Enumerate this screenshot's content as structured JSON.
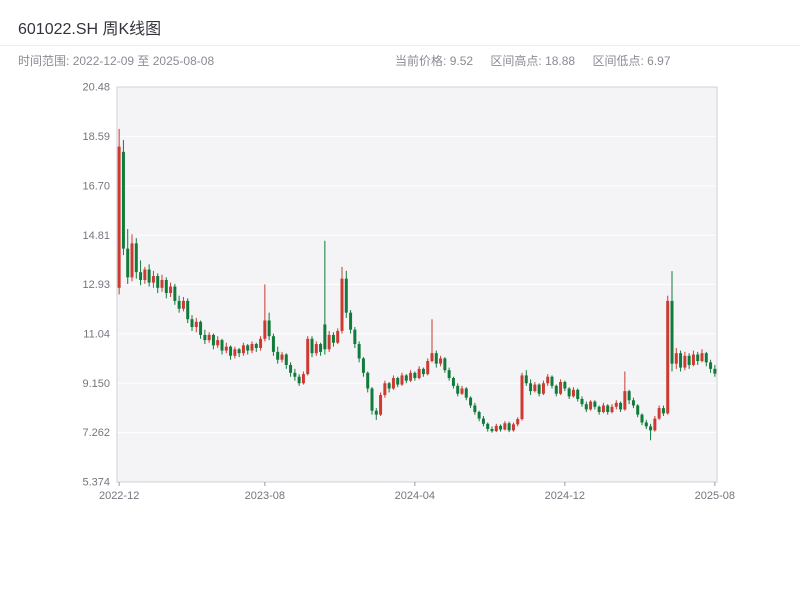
{
  "header": {
    "title": "601022.SH 周K线图"
  },
  "info": {
    "time_range_label": "时间范围:",
    "time_range_value": "2022-12-09 至 2025-08-08",
    "current_price_label": "当前价格:",
    "current_price_value": "9.52",
    "range_high_label": "区间高点:",
    "range_high_value": "18.88",
    "range_low_label": "区间低点:",
    "range_low_value": "6.97"
  },
  "chart_data": {
    "type": "candlestick",
    "title": "601022.SH 周K线图",
    "symbol": "601022.SH",
    "period": "weekly",
    "current_price": 9.52,
    "range_high": 18.88,
    "range_low": 6.97,
    "ylim": [
      5.374,
      20.48
    ],
    "y_ticks": [
      {
        "label": "20.48",
        "value": 20.48
      },
      {
        "label": "18.59",
        "value": 18.59
      },
      {
        "label": "16.70",
        "value": 16.7
      },
      {
        "label": "14.81",
        "value": 14.81
      },
      {
        "label": "12.93",
        "value": 12.93
      },
      {
        "label": "11.04",
        "value": 11.04
      },
      {
        "label": "9.150",
        "value": 9.15
      },
      {
        "label": "7.262",
        "value": 7.262
      },
      {
        "label": "5.374",
        "value": 5.374
      }
    ],
    "x_ticks": [
      {
        "label": "2022-12",
        "index": 0
      },
      {
        "label": "2023-08",
        "index": 34
      },
      {
        "label": "2024-04",
        "index": 69
      },
      {
        "label": "2024-12",
        "index": 104
      },
      {
        "label": "2025-08",
        "index": 139
      }
    ],
    "colors": {
      "up": "#cc3a32",
      "down": "#107b3b",
      "plot_bg": "#f4f4f7",
      "grid": "#ffffff",
      "frame": "#cfcfd8",
      "tick_text": "#75757f"
    },
    "columns": [
      "date",
      "open",
      "high",
      "low",
      "close"
    ],
    "ohlc": [
      [
        "2022-12-09",
        12.8,
        18.88,
        12.55,
        18.2
      ],
      [
        "2022-12-16",
        18.0,
        18.45,
        14.05,
        14.3
      ],
      [
        "2022-12-23",
        14.3,
        15.05,
        12.95,
        13.2
      ],
      [
        "2022-12-30",
        13.2,
        14.85,
        13.05,
        14.5
      ],
      [
        "2023-01-06",
        14.5,
        14.7,
        13.15,
        13.4
      ],
      [
        "2023-01-13",
        13.4,
        13.85,
        12.9,
        13.1
      ],
      [
        "2023-01-20",
        13.1,
        13.6,
        12.95,
        13.5
      ],
      [
        "2023-01-27",
        13.5,
        13.7,
        12.85,
        13.0
      ],
      [
        "2023-02-03",
        13.0,
        13.45,
        12.8,
        13.25
      ],
      [
        "2023-02-10",
        13.25,
        13.35,
        12.6,
        12.8
      ],
      [
        "2023-02-17",
        12.8,
        13.3,
        12.65,
        13.1
      ],
      [
        "2023-02-24",
        13.1,
        13.2,
        12.4,
        12.6
      ],
      [
        "2023-03-03",
        12.6,
        13.0,
        12.45,
        12.85
      ],
      [
        "2023-03-10",
        12.85,
        12.95,
        12.15,
        12.3
      ],
      [
        "2023-03-17",
        12.3,
        12.5,
        11.85,
        12.0
      ],
      [
        "2023-03-24",
        12.0,
        12.45,
        11.9,
        12.3
      ],
      [
        "2023-03-31",
        12.3,
        12.4,
        11.45,
        11.6
      ],
      [
        "2023-04-07",
        11.6,
        11.75,
        11.15,
        11.3
      ],
      [
        "2023-04-14",
        11.3,
        11.65,
        11.1,
        11.5
      ],
      [
        "2023-04-21",
        11.5,
        11.55,
        10.85,
        11.0
      ],
      [
        "2023-04-28",
        11.0,
        11.2,
        10.65,
        10.8
      ],
      [
        "2023-05-05",
        10.8,
        11.1,
        10.7,
        11.0
      ],
      [
        "2023-05-12",
        11.0,
        11.05,
        10.45,
        10.6
      ],
      [
        "2023-05-19",
        10.6,
        10.95,
        10.5,
        10.8
      ],
      [
        "2023-05-26",
        10.8,
        10.85,
        10.25,
        10.4
      ],
      [
        "2023-06-02",
        10.4,
        10.7,
        10.3,
        10.55
      ],
      [
        "2023-06-09",
        10.55,
        10.6,
        10.05,
        10.2
      ],
      [
        "2023-06-16",
        10.2,
        10.55,
        10.1,
        10.45
      ],
      [
        "2023-06-23",
        10.45,
        10.5,
        10.15,
        10.3
      ],
      [
        "2023-06-30",
        10.3,
        10.7,
        10.2,
        10.6
      ],
      [
        "2023-07-07",
        10.6,
        10.65,
        10.25,
        10.4
      ],
      [
        "2023-07-14",
        10.4,
        10.75,
        10.3,
        10.65
      ],
      [
        "2023-07-21",
        10.65,
        10.7,
        10.35,
        10.5
      ],
      [
        "2023-07-28",
        10.5,
        10.95,
        10.4,
        10.85
      ],
      [
        "2023-08-04",
        10.85,
        12.93,
        10.75,
        11.55
      ],
      [
        "2023-08-11",
        11.55,
        11.85,
        10.8,
        10.95
      ],
      [
        "2023-08-18",
        10.95,
        11.05,
        10.2,
        10.35
      ],
      [
        "2023-08-25",
        10.35,
        10.55,
        9.9,
        10.05
      ],
      [
        "2023-09-01",
        10.05,
        10.35,
        9.95,
        10.25
      ],
      [
        "2023-09-08",
        10.25,
        10.3,
        9.7,
        9.85
      ],
      [
        "2023-09-15",
        9.85,
        9.95,
        9.4,
        9.55
      ],
      [
        "2023-09-22",
        9.55,
        9.7,
        9.25,
        9.4
      ],
      [
        "2023-09-29",
        9.4,
        9.5,
        9.05,
        9.15
      ],
      [
        "2023-10-06",
        9.15,
        9.6,
        9.1,
        9.5
      ],
      [
        "2023-10-13",
        9.5,
        10.95,
        9.45,
        10.85
      ],
      [
        "2023-10-20",
        10.85,
        10.95,
        10.15,
        10.3
      ],
      [
        "2023-10-27",
        10.3,
        10.75,
        10.2,
        10.65
      ],
      [
        "2023-11-03",
        10.65,
        10.7,
        10.2,
        10.35
      ],
      [
        "2023-11-10",
        11.4,
        14.6,
        10.25,
        10.45
      ],
      [
        "2023-11-17",
        10.45,
        11.15,
        10.35,
        11.0
      ],
      [
        "2023-11-24",
        11.0,
        11.1,
        10.55,
        10.7
      ],
      [
        "2023-12-01",
        10.7,
        11.25,
        10.65,
        11.15
      ],
      [
        "2023-12-08",
        11.15,
        13.6,
        11.05,
        13.15
      ],
      [
        "2023-12-15",
        13.15,
        13.45,
        11.65,
        11.85
      ],
      [
        "2023-12-22",
        11.85,
        11.95,
        11.05,
        11.2
      ],
      [
        "2023-12-29",
        11.2,
        11.3,
        10.5,
        10.65
      ],
      [
        "2024-01-05",
        10.65,
        10.75,
        9.95,
        10.1
      ],
      [
        "2024-01-12",
        10.1,
        10.15,
        9.4,
        9.55
      ],
      [
        "2024-01-19",
        9.55,
        9.6,
        8.8,
        8.95
      ],
      [
        "2024-01-26",
        8.95,
        9.0,
        7.95,
        8.1
      ],
      [
        "2024-02-02",
        8.1,
        8.2,
        7.75,
        7.95
      ],
      [
        "2024-02-09",
        7.95,
        8.8,
        7.9,
        8.7
      ],
      [
        "2024-02-16",
        8.7,
        9.25,
        8.6,
        9.15
      ],
      [
        "2024-02-23",
        9.15,
        9.2,
        8.8,
        8.95
      ],
      [
        "2024-03-01",
        8.95,
        9.45,
        8.9,
        9.35
      ],
      [
        "2024-03-08",
        9.35,
        9.4,
        9.0,
        9.1
      ],
      [
        "2024-03-15",
        9.1,
        9.55,
        9.05,
        9.45
      ],
      [
        "2024-03-22",
        9.45,
        9.5,
        9.15,
        9.25
      ],
      [
        "2024-03-29",
        9.25,
        9.65,
        9.2,
        9.55
      ],
      [
        "2024-04-05",
        9.55,
        9.6,
        9.25,
        9.35
      ],
      [
        "2024-04-12",
        9.35,
        9.8,
        9.3,
        9.7
      ],
      [
        "2024-04-19",
        9.7,
        9.75,
        9.4,
        9.5
      ],
      [
        "2024-04-26",
        9.5,
        10.1,
        9.45,
        10.0
      ],
      [
        "2024-05-03",
        10.0,
        11.6,
        9.95,
        10.3
      ],
      [
        "2024-05-10",
        10.3,
        10.4,
        9.75,
        9.9
      ],
      [
        "2024-05-17",
        9.9,
        10.2,
        9.8,
        10.1
      ],
      [
        "2024-05-24",
        10.1,
        10.15,
        9.55,
        9.65
      ],
      [
        "2024-05-31",
        9.65,
        9.75,
        9.25,
        9.35
      ],
      [
        "2024-06-07",
        9.35,
        9.4,
        8.95,
        9.05
      ],
      [
        "2024-06-14",
        9.05,
        9.15,
        8.65,
        8.75
      ],
      [
        "2024-06-21",
        8.75,
        9.05,
        8.7,
        8.95
      ],
      [
        "2024-06-28",
        8.95,
        9.0,
        8.5,
        8.6
      ],
      [
        "2024-07-05",
        8.6,
        8.65,
        8.2,
        8.3
      ],
      [
        "2024-07-12",
        8.3,
        8.4,
        7.95,
        8.05
      ],
      [
        "2024-07-19",
        8.05,
        8.1,
        7.7,
        7.8
      ],
      [
        "2024-07-26",
        7.8,
        7.9,
        7.5,
        7.6
      ],
      [
        "2024-08-02",
        7.6,
        7.65,
        7.3,
        7.4
      ],
      [
        "2024-08-09",
        7.4,
        7.5,
        7.26,
        7.32
      ],
      [
        "2024-08-16",
        7.32,
        7.6,
        7.28,
        7.52
      ],
      [
        "2024-08-23",
        7.52,
        7.58,
        7.3,
        7.38
      ],
      [
        "2024-08-30",
        7.38,
        7.7,
        7.35,
        7.62
      ],
      [
        "2024-09-06",
        7.62,
        7.68,
        7.28,
        7.35
      ],
      [
        "2024-09-13",
        7.35,
        7.65,
        7.3,
        7.58
      ],
      [
        "2024-09-20",
        7.58,
        7.85,
        7.5,
        7.78
      ],
      [
        "2024-09-27",
        7.78,
        9.55,
        7.72,
        9.45
      ],
      [
        "2024-10-04",
        9.45,
        9.65,
        9.05,
        9.15
      ],
      [
        "2024-10-11",
        9.15,
        9.3,
        8.7,
        8.85
      ],
      [
        "2024-10-18",
        8.85,
        9.2,
        8.8,
        9.1
      ],
      [
        "2024-10-25",
        9.1,
        9.15,
        8.65,
        8.75
      ],
      [
        "2024-11-01",
        8.75,
        9.25,
        8.7,
        9.15
      ],
      [
        "2024-11-08",
        9.15,
        9.5,
        9.05,
        9.4
      ],
      [
        "2024-11-15",
        9.4,
        9.45,
        8.95,
        9.05
      ],
      [
        "2024-11-22",
        9.05,
        9.1,
        8.65,
        8.75
      ],
      [
        "2024-11-29",
        8.75,
        9.3,
        8.7,
        9.2
      ],
      [
        "2024-12-06",
        9.2,
        9.25,
        8.85,
        8.95
      ],
      [
        "2024-12-13",
        8.95,
        9.0,
        8.55,
        8.65
      ],
      [
        "2024-12-20",
        8.65,
        9.0,
        8.6,
        8.9
      ],
      [
        "2024-12-27",
        8.9,
        8.95,
        8.45,
        8.55
      ],
      [
        "2025-01-03",
        8.55,
        8.65,
        8.25,
        8.35
      ],
      [
        "2025-01-10",
        8.35,
        8.45,
        8.05,
        8.15
      ],
      [
        "2025-01-17",
        8.15,
        8.5,
        8.1,
        8.45
      ],
      [
        "2025-01-24",
        8.45,
        8.5,
        8.15,
        8.25
      ],
      [
        "2025-01-31",
        8.25,
        8.3,
        7.95,
        8.05
      ],
      [
        "2025-02-07",
        8.05,
        8.4,
        8.0,
        8.3
      ],
      [
        "2025-02-14",
        8.3,
        8.35,
        7.95,
        8.05
      ],
      [
        "2025-02-21",
        8.05,
        8.35,
        8.0,
        8.25
      ],
      [
        "2025-02-28",
        8.25,
        8.5,
        8.15,
        8.4
      ],
      [
        "2025-03-07",
        8.4,
        8.45,
        8.05,
        8.15
      ],
      [
        "2025-03-14",
        8.15,
        9.6,
        8.1,
        8.85
      ],
      [
        "2025-03-21",
        8.85,
        8.9,
        8.35,
        8.5
      ],
      [
        "2025-03-28",
        8.5,
        8.6,
        8.2,
        8.3
      ],
      [
        "2025-04-04",
        8.3,
        8.35,
        7.85,
        7.95
      ],
      [
        "2025-04-11",
        7.95,
        8.0,
        7.55,
        7.65
      ],
      [
        "2025-04-18",
        7.65,
        7.75,
        7.4,
        7.5
      ],
      [
        "2025-04-25",
        7.5,
        7.6,
        6.97,
        7.35
      ],
      [
        "2025-05-02",
        7.35,
        7.9,
        7.3,
        7.8
      ],
      [
        "2025-05-09",
        7.8,
        8.3,
        7.75,
        8.2
      ],
      [
        "2025-05-16",
        8.2,
        8.3,
        7.9,
        8.0
      ],
      [
        "2025-05-23",
        8.0,
        12.5,
        7.95,
        12.3
      ],
      [
        "2025-05-30",
        12.3,
        13.44,
        9.6,
        9.9
      ],
      [
        "2025-06-06",
        9.9,
        10.5,
        9.7,
        10.3
      ],
      [
        "2025-06-13",
        10.3,
        10.4,
        9.6,
        9.75
      ],
      [
        "2025-06-20",
        9.75,
        10.35,
        9.65,
        10.2
      ],
      [
        "2025-06-27",
        10.2,
        10.3,
        9.7,
        9.85
      ],
      [
        "2025-07-04",
        9.85,
        10.4,
        9.8,
        10.25
      ],
      [
        "2025-07-11",
        10.25,
        10.35,
        9.85,
        10.0
      ],
      [
        "2025-07-18",
        10.0,
        10.45,
        9.95,
        10.3
      ],
      [
        "2025-07-25",
        10.3,
        10.35,
        9.8,
        9.95
      ],
      [
        "2025-08-01",
        9.95,
        10.05,
        9.55,
        9.7
      ],
      [
        "2025-08-08",
        9.7,
        9.85,
        9.4,
        9.52
      ]
    ]
  }
}
